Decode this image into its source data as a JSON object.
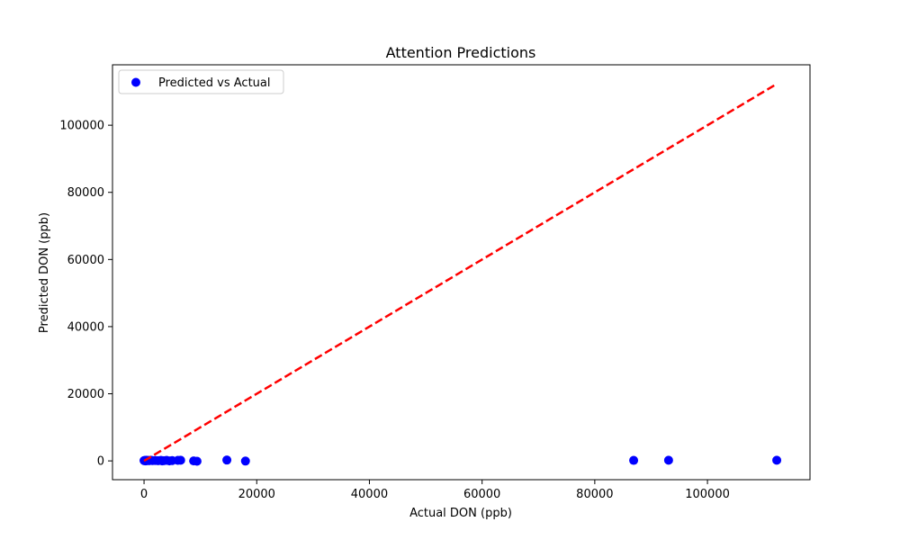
{
  "chart_data": {
    "type": "scatter",
    "title": "Attention Predictions",
    "xlabel": "Actual DON (ppb)",
    "ylabel": "Predicted DON (ppb)",
    "xlim": [
      -5600,
      118200
    ],
    "ylim": [
      -5600,
      118000
    ],
    "xticks": [
      0,
      20000,
      40000,
      60000,
      80000,
      100000
    ],
    "yticks": [
      0,
      20000,
      40000,
      60000,
      80000,
      100000
    ],
    "xtick_labels": [
      "0",
      "20000",
      "40000",
      "60000",
      "80000",
      "100000"
    ],
    "ytick_labels": [
      "0",
      "20000",
      "40000",
      "60000",
      "80000",
      "100000"
    ],
    "grid": false,
    "legend_position": "upper-left",
    "series": [
      {
        "name": "Predicted vs Actual",
        "kind": "scatter",
        "color": "#0000ff",
        "points": [
          [
            0,
            100
          ],
          [
            100,
            50
          ],
          [
            200,
            150
          ],
          [
            300,
            0
          ],
          [
            400,
            200
          ],
          [
            500,
            80
          ],
          [
            700,
            150
          ],
          [
            900,
            50
          ],
          [
            1200,
            200
          ],
          [
            1500,
            100
          ],
          [
            2000,
            120
          ],
          [
            2500,
            50
          ],
          [
            3000,
            150
          ],
          [
            3200,
            0
          ],
          [
            3500,
            80
          ],
          [
            4000,
            150
          ],
          [
            4500,
            0
          ],
          [
            5000,
            100
          ],
          [
            6000,
            150
          ],
          [
            6500,
            200
          ],
          [
            8800,
            0
          ],
          [
            9400,
            -100
          ],
          [
            14700,
            250
          ],
          [
            18000,
            -50
          ],
          [
            86900,
            150
          ],
          [
            93100,
            200
          ],
          [
            112300,
            200
          ]
        ]
      },
      {
        "name": "",
        "kind": "reference-line",
        "color": "#ff0000",
        "dashed": true,
        "points": [
          [
            0,
            0
          ],
          [
            112300,
            112300
          ]
        ]
      }
    ]
  }
}
